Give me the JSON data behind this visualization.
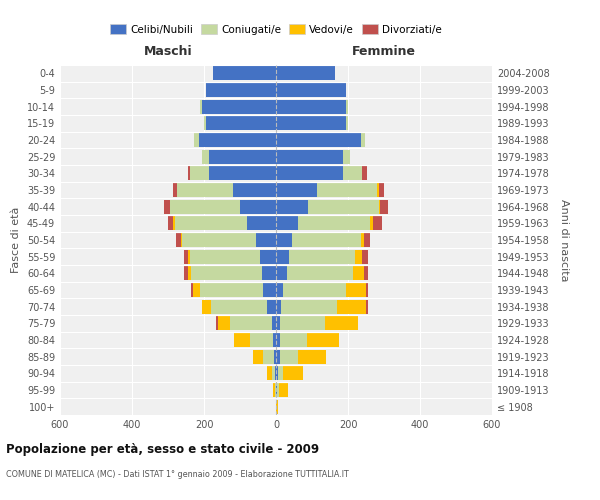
{
  "age_groups": [
    "100+",
    "95-99",
    "90-94",
    "85-89",
    "80-84",
    "75-79",
    "70-74",
    "65-69",
    "60-64",
    "55-59",
    "50-54",
    "45-49",
    "40-44",
    "35-39",
    "30-34",
    "25-29",
    "20-24",
    "15-19",
    "10-14",
    "5-9",
    "0-4"
  ],
  "birth_years": [
    "≤ 1908",
    "1909-1913",
    "1914-1918",
    "1919-1923",
    "1924-1928",
    "1929-1933",
    "1934-1938",
    "1939-1943",
    "1944-1948",
    "1949-1953",
    "1954-1958",
    "1959-1963",
    "1964-1968",
    "1969-1973",
    "1974-1978",
    "1979-1983",
    "1984-1988",
    "1989-1993",
    "1994-1998",
    "1999-2003",
    "2004-2008"
  ],
  "colors": {
    "celibi": "#4472C4",
    "coniugati": "#c5d9a0",
    "vedovi": "#ffc000",
    "divorziati": "#c0504d"
  },
  "maschi": {
    "celibi": [
      0,
      1,
      2,
      5,
      8,
      12,
      25,
      35,
      40,
      45,
      55,
      80,
      100,
      120,
      185,
      185,
      215,
      195,
      205,
      195,
      175
    ],
    "coniugati": [
      0,
      2,
      8,
      30,
      65,
      115,
      155,
      175,
      195,
      195,
      205,
      200,
      195,
      155,
      55,
      20,
      12,
      5,
      5,
      0,
      0
    ],
    "vedovi": [
      0,
      5,
      15,
      30,
      45,
      35,
      25,
      20,
      10,
      5,
      5,
      5,
      0,
      0,
      0,
      0,
      0,
      0,
      0,
      0,
      0
    ],
    "divorziati": [
      0,
      0,
      0,
      0,
      0,
      5,
      0,
      5,
      10,
      10,
      12,
      15,
      15,
      10,
      5,
      0,
      0,
      0,
      0,
      0,
      0
    ]
  },
  "femmine": {
    "celibi": [
      0,
      2,
      5,
      10,
      10,
      12,
      15,
      20,
      30,
      35,
      45,
      60,
      90,
      115,
      185,
      185,
      235,
      195,
      195,
      195,
      165
    ],
    "coniugati": [
      0,
      5,
      15,
      50,
      75,
      125,
      155,
      175,
      185,
      185,
      190,
      200,
      195,
      165,
      55,
      20,
      12,
      5,
      5,
      0,
      0
    ],
    "vedovi": [
      5,
      25,
      55,
      80,
      90,
      90,
      80,
      55,
      30,
      20,
      10,
      10,
      5,
      5,
      0,
      0,
      0,
      0,
      0,
      0,
      0
    ],
    "divorziati": [
      0,
      0,
      0,
      0,
      0,
      0,
      5,
      5,
      10,
      15,
      15,
      25,
      20,
      15,
      12,
      0,
      0,
      0,
      0,
      0,
      0
    ]
  },
  "title": "Popolazione per età, sesso e stato civile - 2009",
  "subtitle": "COMUNE DI MATELICA (MC) - Dati ISTAT 1° gennaio 2009 - Elaborazione TUTTITALIA.IT",
  "xlabel_left": "Maschi",
  "xlabel_right": "Femmine",
  "ylabel_left": "Fasce di età",
  "ylabel_right": "Anni di nascita",
  "xlim": 600,
  "legend_labels": [
    "Celibi/Nubili",
    "Coniugati/e",
    "Vedovi/e",
    "Divorziati/e"
  ],
  "bg_color": "#f0f0f0",
  "bar_height": 0.85
}
